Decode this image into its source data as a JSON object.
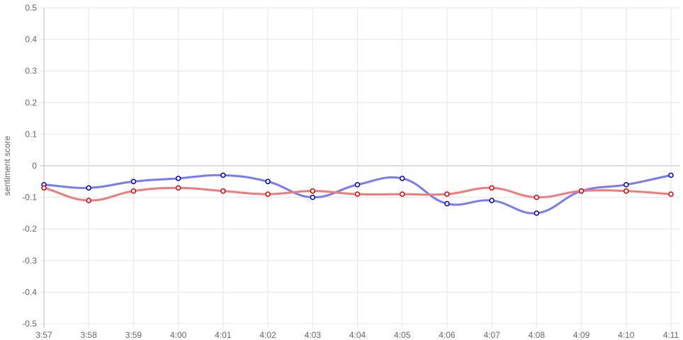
{
  "chart_data": {
    "type": "line",
    "title": "",
    "xlabel": "",
    "ylabel": "sentiment score",
    "ylim": [
      -0.5,
      0.5
    ],
    "yticks": [
      "0.5",
      "0.4",
      "0.3",
      "0.2",
      "0.1",
      "0",
      "-0.1",
      "-0.2",
      "-0.3",
      "-0.4",
      "-0.5"
    ],
    "ytick_values": [
      0.5,
      0.4,
      0.3,
      0.2,
      0.1,
      0,
      -0.1,
      -0.2,
      -0.3,
      -0.4,
      -0.5
    ],
    "x": [
      "3:57",
      "3:58",
      "3:59",
      "4:00",
      "4:01",
      "4:02",
      "4:03",
      "4:04",
      "4:05",
      "4:06",
      "4:07",
      "4:08",
      "4:09",
      "4:10",
      "4:11"
    ],
    "grid": true,
    "legend": "none",
    "series": [
      {
        "line_color": "#7b7bf0",
        "point_color": "#0000c8",
        "values": [
          -0.06,
          -0.07,
          -0.05,
          -0.04,
          -0.03,
          -0.05,
          -0.1,
          -0.06,
          -0.04,
          -0.12,
          -0.11,
          -0.15,
          -0.08,
          -0.06,
          -0.03
        ]
      },
      {
        "line_color": "#f07b7b",
        "point_color": "#e00000",
        "values": [
          -0.07,
          -0.11,
          -0.08,
          -0.07,
          -0.08,
          -0.09,
          -0.08,
          -0.09,
          -0.09,
          -0.09,
          -0.07,
          -0.1,
          -0.08,
          -0.08,
          -0.09
        ]
      }
    ]
  }
}
